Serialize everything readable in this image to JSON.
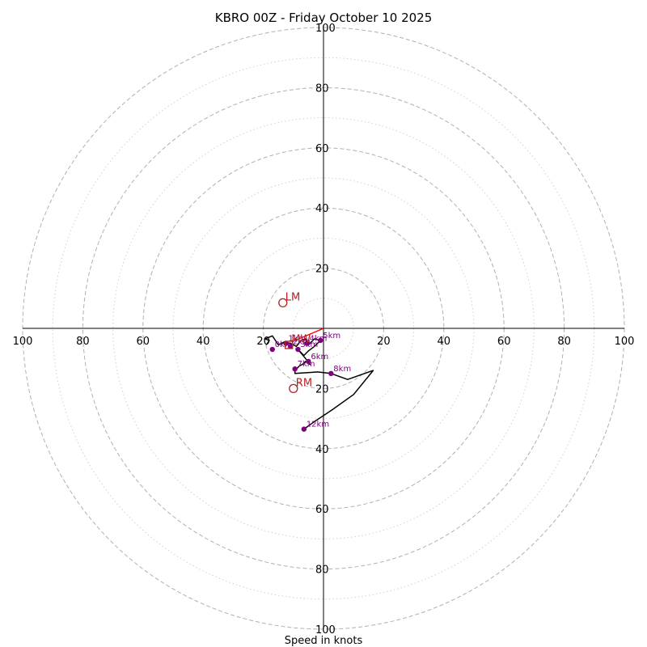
{
  "chart_data": {
    "type": "hodograph",
    "title": "KBRO 00Z - Friday October 10 2025",
    "xlabel": "Speed in knots",
    "units": "knots",
    "xlim": [
      -100,
      100
    ],
    "ylim": [
      -100,
      100
    ],
    "major_rings": [
      20,
      40,
      60,
      80,
      100
    ],
    "minor_rings": [
      10,
      30,
      50,
      70,
      90
    ],
    "x_ticks": [
      {
        "value": -100,
        "label": "100"
      },
      {
        "value": -80,
        "label": "80"
      },
      {
        "value": -60,
        "label": "60"
      },
      {
        "value": -40,
        "label": "40"
      },
      {
        "value": -20,
        "label": "20"
      },
      {
        "value": 20,
        "label": "20"
      },
      {
        "value": 40,
        "label": "40"
      },
      {
        "value": 60,
        "label": "60"
      },
      {
        "value": 80,
        "label": "80"
      },
      {
        "value": 100,
        "label": "100"
      }
    ],
    "y_ticks": [
      {
        "value": 100,
        "label": "100"
      },
      {
        "value": 80,
        "label": "80"
      },
      {
        "value": 60,
        "label": "60"
      },
      {
        "value": 40,
        "label": "40"
      },
      {
        "value": 20,
        "label": "20"
      },
      {
        "value": -20,
        "label": "20"
      },
      {
        "value": -40,
        "label": "40"
      },
      {
        "value": -60,
        "label": "60"
      },
      {
        "value": -80,
        "label": "80"
      },
      {
        "value": -100,
        "label": "100"
      }
    ],
    "trace": [
      [
        -19,
        -5.5
      ],
      [
        -18,
        -4
      ],
      [
        -19.5,
        -3.5
      ],
      [
        -17,
        -2.5
      ],
      [
        -15,
        -5.5
      ],
      [
        -13,
        -4.5
      ],
      [
        -11,
        -5
      ],
      [
        -9,
        -6
      ],
      [
        -7.5,
        -4
      ],
      [
        -6,
        -3.5
      ],
      [
        -5,
        -5.5
      ],
      [
        -3,
        -3.5
      ],
      [
        -1,
        -4
      ],
      [
        -3,
        -6
      ],
      [
        -5,
        -7.5
      ],
      [
        -6.5,
        -9
      ],
      [
        -8.5,
        -7
      ],
      [
        -6,
        -10
      ],
      [
        -4.5,
        -12
      ],
      [
        -6,
        -11
      ],
      [
        -7,
        -12
      ],
      [
        -8,
        -12.5
      ],
      [
        -9.5,
        -14
      ],
      [
        -9.5,
        -15
      ],
      [
        -2,
        -14.5
      ],
      [
        2.5,
        -15
      ],
      [
        8,
        -17
      ],
      [
        16.5,
        -14
      ],
      [
        10,
        -22
      ],
      [
        3,
        -27
      ],
      [
        -3,
        -31
      ],
      [
        -6.5,
        -33.5
      ]
    ],
    "shear_vector": [
      [
        -10.5,
        -4.5
      ],
      [
        0,
        0
      ]
    ],
    "height_markers": [
      {
        "label": "0km",
        "u": -17,
        "v": -7
      },
      {
        "label": "1km",
        "u": -12.5,
        "v": -5
      },
      {
        "label": "2km",
        "u": -11,
        "v": -6
      },
      {
        "label": "3km",
        "u": -8.5,
        "v": -7
      },
      {
        "label": "4km",
        "u": -5.5,
        "v": -5
      },
      {
        "label": "5km",
        "u": -1,
        "v": -4
      },
      {
        "label": "6km",
        "u": -5,
        "v": -11
      },
      {
        "label": "7km",
        "u": -9.5,
        "v": -13.5
      },
      {
        "label": "8km",
        "u": 2.5,
        "v": -15
      },
      {
        "label": "12km",
        "u": -6.5,
        "v": -33.5
      }
    ],
    "storm_motions": [
      {
        "label": "LM",
        "u": -13.5,
        "v": 8.5
      },
      {
        "label": "RM",
        "u": -10,
        "v": -20
      },
      {
        "label": "MW",
        "u": -11.5,
        "v": -5.5
      }
    ],
    "colors": {
      "trace": "#000000",
      "markers": "#800080",
      "storm_motion": "#b22222",
      "shear": "#ff0000",
      "major_ring": "#b0b0b0",
      "minor_ring": "#d0d0d0",
      "axes": "#000000"
    }
  }
}
